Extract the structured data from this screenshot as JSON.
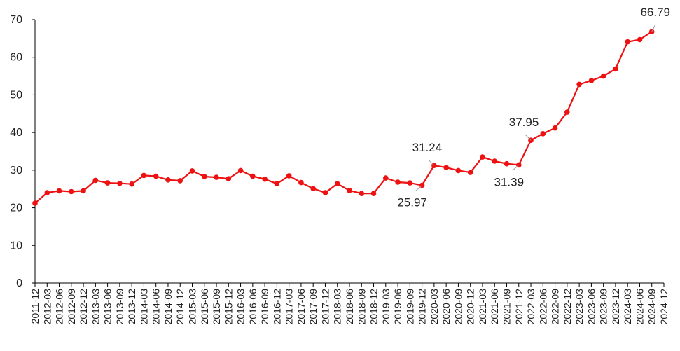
{
  "chart_data": {
    "type": "line",
    "title": "",
    "xlabel": "",
    "ylabel": "",
    "ylim": [
      0,
      70
    ],
    "y_ticks": [
      0,
      10,
      20,
      30,
      40,
      50,
      60,
      70
    ],
    "grid": false,
    "legend": "none",
    "x": [
      "2011-12",
      "2012-03",
      "2012-06",
      "2012-09",
      "2012-12",
      "2013-03",
      "2013-06",
      "2013-09",
      "2013-12",
      "2014-03",
      "2014-06",
      "2014-09",
      "2014-12",
      "2015-03",
      "2015-06",
      "2015-09",
      "2015-12",
      "2016-03",
      "2016-06",
      "2016-09",
      "2016-12",
      "2017-03",
      "2017-06",
      "2017-09",
      "2017-12",
      "2018-03",
      "2018-06",
      "2018-09",
      "2018-12",
      "2019-03",
      "2019-06",
      "2019-09",
      "2019-12",
      "2020-03",
      "2020-06",
      "2020-09",
      "2020-12",
      "2021-03",
      "2021-06",
      "2021-09",
      "2021-12",
      "2022-03",
      "2022-06",
      "2022-09",
      "2022-12",
      "2023-03",
      "2023-06",
      "2023-09",
      "2023-12",
      "2024-03",
      "2024-06",
      "2024-09",
      "2024-12"
    ],
    "series": [
      {
        "color": "#ee1111",
        "values": [
          21.2,
          24.0,
          24.5,
          24.3,
          24.5,
          27.3,
          26.6,
          26.5,
          26.3,
          28.6,
          28.4,
          27.4,
          27.2,
          29.8,
          28.3,
          28.1,
          27.7,
          29.9,
          28.4,
          27.6,
          26.4,
          28.5,
          26.7,
          25.1,
          24.0,
          26.4,
          24.6,
          23.8,
          23.8,
          27.9,
          26.8,
          26.6,
          25.97,
          31.24,
          30.7,
          29.9,
          29.4,
          33.5,
          32.4,
          31.7,
          31.39,
          37.95,
          39.7,
          41.2,
          45.4,
          52.8,
          53.8,
          55.0,
          56.9,
          64.1,
          64.7,
          66.79,
          null
        ]
      }
    ],
    "annotations": [
      {
        "index": 32,
        "text": "25.97",
        "position": "below-left"
      },
      {
        "index": 33,
        "text": "31.24",
        "position": "above-left"
      },
      {
        "index": 40,
        "text": "31.39",
        "position": "below-left"
      },
      {
        "index": 41,
        "text": "37.95",
        "position": "above-left"
      },
      {
        "index": 51,
        "text": "66.79",
        "position": "above-right"
      }
    ]
  }
}
